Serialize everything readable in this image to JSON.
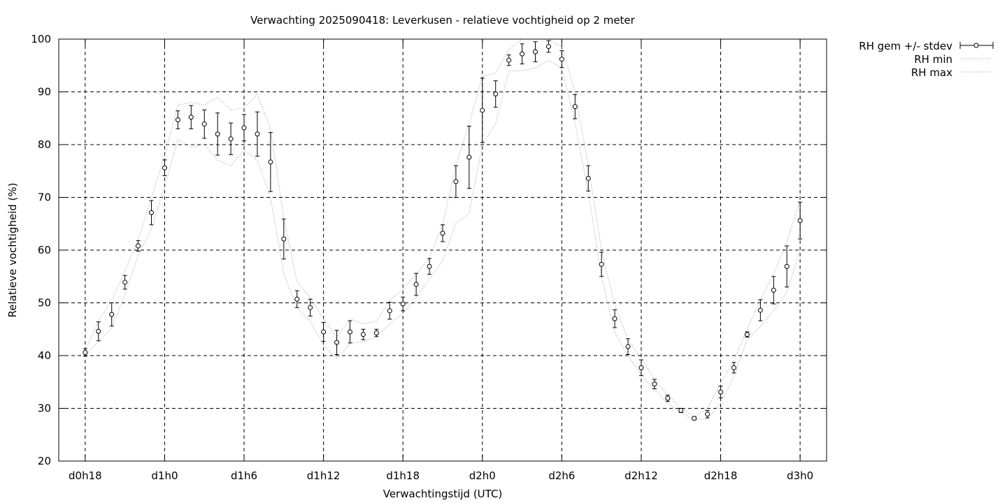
{
  "chart_data": {
    "type": "line",
    "title": "Verwachting 2025090418: Leverkusen - relatieve vochtigheid op 2 meter",
    "xlabel": "Verwachtingstijd (UTC)",
    "ylabel": "Relatieve vochtigheid (%)",
    "ylim": [
      20,
      100
    ],
    "xlim": [
      16,
      74
    ],
    "grid": true,
    "legend_position": "top-right, outside plot",
    "x_unit": "hours since d0h0",
    "y_ticks": [
      20,
      30,
      40,
      50,
      60,
      70,
      80,
      90,
      100
    ],
    "x_ticks": [
      {
        "x": 18,
        "label": "d0h18"
      },
      {
        "x": 24,
        "label": "d1h0"
      },
      {
        "x": 30,
        "label": "d1h6"
      },
      {
        "x": 36,
        "label": "d1h12"
      },
      {
        "x": 42,
        "label": "d1h18"
      },
      {
        "x": 48,
        "label": "d2h0"
      },
      {
        "x": 54,
        "label": "d2h6"
      },
      {
        "x": 60,
        "label": "d2h12"
      },
      {
        "x": 66,
        "label": "d2h18"
      },
      {
        "x": 72,
        "label": "d3h0"
      }
    ],
    "x": [
      18,
      19,
      20,
      21,
      22,
      23,
      24,
      25,
      26,
      27,
      28,
      29,
      30,
      31,
      32,
      33,
      34,
      35,
      36,
      37,
      38,
      39,
      40,
      41,
      42,
      43,
      44,
      45,
      46,
      47,
      48,
      49,
      50,
      51,
      52,
      53,
      54,
      55,
      56,
      57,
      58,
      59,
      60,
      61,
      62,
      63,
      64,
      65,
      66,
      67,
      68,
      69,
      70,
      71,
      72
    ],
    "series": [
      {
        "name": "RH gem +/- stdev",
        "style": "points with error bars",
        "values": [
          40.6,
          44.6,
          47.8,
          53.9,
          60.8,
          67.1,
          75.6,
          84.7,
          85.2,
          83.9,
          82.0,
          81.1,
          83.2,
          82.0,
          76.7,
          62.1,
          50.7,
          49.1,
          44.5,
          42.5,
          44.5,
          44.0,
          44.3,
          48.5,
          49.8,
          53.5,
          56.9,
          63.2,
          73.0,
          77.6,
          86.5,
          89.6,
          96.0,
          97.2,
          97.6,
          98.6,
          96.2,
          87.2,
          73.6,
          57.3,
          47.0,
          41.7,
          37.7,
          34.6,
          31.9,
          29.6,
          28.1,
          28.9,
          33.1,
          37.7,
          44.0,
          48.6,
          52.4,
          56.9,
          65.6
        ],
        "stdev": [
          0.7,
          1.8,
          2.2,
          1.3,
          1.0,
          2.3,
          1.5,
          1.7,
          2.2,
          2.7,
          4.0,
          3.0,
          2.5,
          4.2,
          5.6,
          3.8,
          1.6,
          1.6,
          1.8,
          2.3,
          2.1,
          1.0,
          0.7,
          1.6,
          1.3,
          2.1,
          1.5,
          1.6,
          3.0,
          5.9,
          6.1,
          2.5,
          1.0,
          1.9,
          1.9,
          1.1,
          1.6,
          2.3,
          2.4,
          2.3,
          1.7,
          1.5,
          1.5,
          0.9,
          0.6,
          0.4,
          0.3,
          0.7,
          1.1,
          1.0,
          0.5,
          2.0,
          2.6,
          3.9,
          3.5
        ]
      },
      {
        "name": "RH min",
        "style": "dotted",
        "values": [
          40.0,
          42.6,
          45.3,
          51.6,
          59.0,
          64.0,
          72.0,
          81.0,
          79.5,
          80.0,
          77.0,
          76.0,
          79.0,
          77.0,
          70.0,
          55.5,
          49.0,
          46.5,
          42.0,
          39.4,
          42.3,
          42.6,
          43.5,
          46.0,
          48.0,
          51.0,
          54.5,
          58.0,
          65.0,
          67.0,
          80.0,
          84.0,
          94.0,
          94.0,
          94.5,
          96.0,
          94.5,
          84.0,
          71.0,
          55.0,
          44.3,
          40.0,
          36.3,
          33.5,
          31.0,
          29.2,
          27.8,
          28.0,
          31.0,
          36.0,
          43.0,
          45.5,
          48.5,
          52.0,
          60.0
        ]
      },
      {
        "name": "RH max",
        "style": "dotted",
        "values": [
          41.0,
          46.5,
          50.5,
          56.0,
          62.0,
          70.0,
          78.0,
          87.5,
          88.0,
          87.5,
          89.0,
          86.5,
          87.0,
          89.5,
          83.0,
          66.0,
          54.0,
          51.0,
          47.0,
          43.5,
          47.0,
          46.0,
          46.5,
          50.5,
          52.5,
          55.5,
          58.5,
          65.0,
          76.0,
          84.0,
          93.0,
          93.5,
          98.0,
          100.0,
          100.0,
          100.0,
          98.5,
          90.0,
          76.0,
          60.0,
          49.5,
          43.0,
          39.5,
          35.5,
          32.5,
          30.0,
          28.4,
          30.0,
          34.7,
          39.0,
          45.0,
          50.5,
          55.5,
          61.5,
          69.5
        ]
      }
    ]
  }
}
